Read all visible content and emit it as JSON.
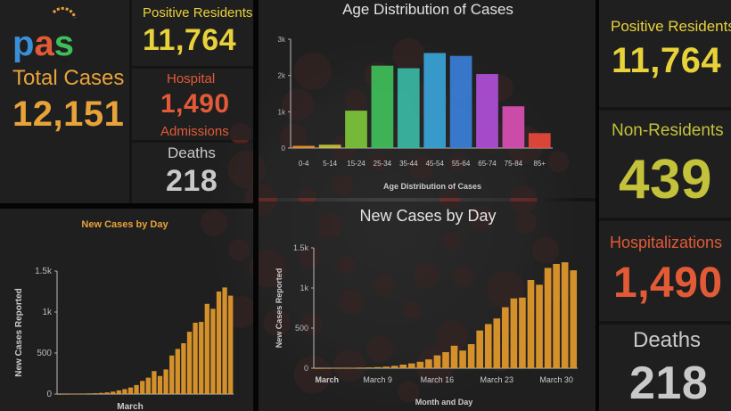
{
  "logo": {
    "text": "pas"
  },
  "summary": {
    "total_cases_label": "Total Cases",
    "total_cases_value": "12,151",
    "positive_residents_label": "Positive Residents",
    "positive_residents_value": "11,764",
    "hospital_label": "Hospital",
    "hospital_value": "1,490",
    "admissions_label": "Admissions",
    "deaths_label": "Deaths",
    "deaths_value": "218"
  },
  "right_panel": {
    "positive_residents_label": "Positive Residents",
    "positive_residents_value": "11,764",
    "non_residents_label": "Non-Residents",
    "non_residents_value": "439",
    "hospitalizations_label": "Hospitalizations",
    "hospitalizations_value": "1,490",
    "deaths_label": "Deaths",
    "deaths_value": "218"
  },
  "colors": {
    "accent_yellow": "#e9d13a",
    "accent_orange": "#e8a23a",
    "accent_red": "#e35a37",
    "bar_orange": "#e39a2c"
  },
  "chart_data": [
    {
      "id": "age-distribution",
      "type": "bar",
      "title": "Age Distribution of Cases",
      "xlabel": "Age Distribution of Cases",
      "ylabel": "",
      "categories": [
        "0-4",
        "5-14",
        "15-24",
        "25-34",
        "35-44",
        "45-54",
        "55-64",
        "65-74",
        "75-84",
        "85+"
      ],
      "values": [
        60,
        90,
        1030,
        2270,
        2200,
        2620,
        2540,
        2040,
        1150,
        410
      ],
      "colors": [
        "#e8932a",
        "#c9c23a",
        "#7dc43a",
        "#3fbf5a",
        "#3ab9a4",
        "#3aa3d9",
        "#3a7fd9",
        "#b04fd9",
        "#d94fb4",
        "#e84a3a"
      ],
      "ylim": [
        0,
        3000
      ],
      "yticks": [
        0,
        1000,
        2000,
        3000
      ],
      "ytick_labels": [
        "0",
        "1k",
        "2k",
        "3k"
      ]
    },
    {
      "id": "new-cases-left",
      "type": "bar",
      "title": "New Cases by Day",
      "xlabel": "March",
      "ylabel": "New Cases Reported",
      "values": [
        1,
        2,
        3,
        4,
        6,
        8,
        10,
        14,
        20,
        30,
        45,
        60,
        80,
        110,
        160,
        200,
        280,
        220,
        300,
        470,
        550,
        620,
        760,
        870,
        880,
        1100,
        1040,
        1250,
        1300,
        1200
      ],
      "ylim": [
        0,
        1500
      ],
      "yticks": [
        0,
        500,
        1000,
        1500
      ],
      "ytick_labels": [
        "0",
        "500",
        "1k",
        "1.5k"
      ]
    },
    {
      "id": "new-cases-center",
      "type": "bar",
      "title": "New Cases by Day",
      "xlabel": "Month and Day",
      "ylabel": "New Cases Reported",
      "values": [
        1,
        2,
        3,
        4,
        6,
        8,
        10,
        14,
        20,
        30,
        45,
        60,
        80,
        110,
        160,
        200,
        280,
        220,
        300,
        470,
        550,
        620,
        760,
        870,
        880,
        1100,
        1040,
        1250,
        1300,
        1320,
        1220
      ],
      "x_tick_labels": [
        "March",
        "March 9",
        "March 16",
        "March 23",
        "March 30"
      ],
      "ylim": [
        0,
        1500
      ],
      "yticks": [
        0,
        500,
        1000,
        1500
      ],
      "ytick_labels": [
        "0",
        "500",
        "1k",
        "1.5k"
      ]
    }
  ]
}
